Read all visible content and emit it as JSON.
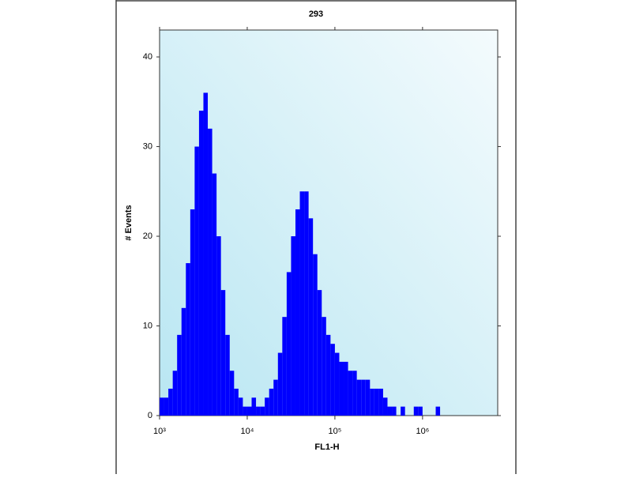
{
  "chart_data": {
    "type": "histogram",
    "title": "293",
    "x_label": "FL1-H",
    "y_label": "# Events",
    "x_scale": "log",
    "color": "#0000ff",
    "xlim": [
      1000,
      7200000
    ],
    "ylim": [
      0,
      43
    ],
    "xticks": [
      {
        "value": 1000,
        "label": "10³"
      },
      {
        "value": 10000,
        "label": "10⁴"
      },
      {
        "value": 100000,
        "label": "10⁵"
      },
      {
        "value": 1000000,
        "label": "10⁶"
      }
    ],
    "yticks": [
      0,
      10,
      20,
      30,
      40
    ],
    "bins": [
      1000,
      1122,
      1259,
      1413,
      1585,
      1778,
      1995,
      2239,
      2512,
      2818,
      3162,
      3548,
      3981,
      4467,
      5012,
      5623,
      6310,
      7079,
      7943,
      8913,
      10000,
      11220,
      12590,
      14130,
      15850,
      17780,
      19950,
      22390,
      25120,
      28180,
      31620,
      35480,
      39810,
      44670,
      50120,
      56230,
      63100,
      70790,
      79430,
      89130,
      100000,
      112200,
      125900,
      141300,
      158500,
      177800,
      199500,
      223900,
      251200,
      281800,
      316200,
      354800,
      398100,
      446700,
      501200,
      562300,
      631000,
      707900,
      794300,
      891300,
      1000000,
      1122000,
      1259000,
      1413000,
      1585000,
      1778000,
      1995000,
      2239000,
      2512000,
      2818000,
      3162000,
      3548000,
      3981000,
      4467000,
      5012000,
      5623000,
      6310000,
      7079000
    ],
    "values": [
      2,
      2,
      3,
      5,
      9,
      12,
      17,
      23,
      30,
      34,
      36,
      32,
      27,
      20,
      14,
      9,
      5,
      3,
      2,
      1,
      1,
      2,
      1,
      1,
      2,
      3,
      4,
      7,
      11,
      16,
      20,
      23,
      25,
      25,
      22,
      18,
      14,
      11,
      9,
      8,
      7,
      6,
      6,
      5,
      5,
      4,
      4,
      4,
      3,
      3,
      3,
      2,
      1,
      1,
      0,
      1,
      0,
      0,
      1,
      1,
      0,
      0,
      0,
      1,
      0,
      0,
      0,
      0,
      0,
      0,
      0,
      0,
      0,
      0,
      0,
      0,
      0
    ]
  }
}
